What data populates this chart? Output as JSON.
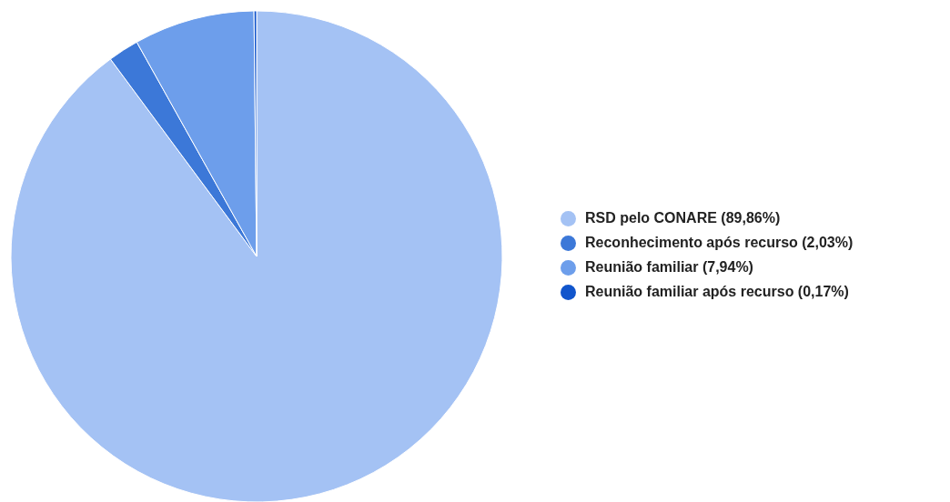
{
  "chart_data": {
    "type": "pie",
    "categories": [
      "RSD pelo CONARE (89,86%)",
      "Reconhecimento após recurso (2,03%)",
      "Reunião familiar (7,94%)",
      "Reunião familiar após recurso (0,17%)"
    ],
    "values": [
      89.86,
      2.03,
      7.94,
      0.17
    ],
    "colors": [
      "#a4c2f4",
      "#3c78d8",
      "#6d9eeb",
      "#1155cc"
    ],
    "legend": "right"
  }
}
